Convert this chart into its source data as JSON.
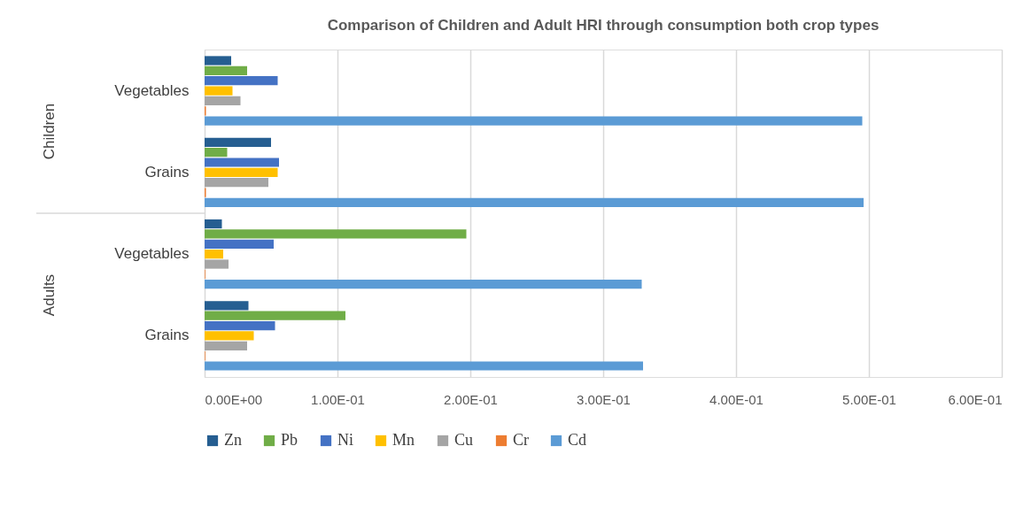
{
  "chart_data": {
    "type": "bar",
    "orientation": "horizontal",
    "title": "Comparison of Children and Adult HRI through consumption  both crop types",
    "categories": [
      "Vegetables",
      "Grains",
      "Vegetables",
      "Grains"
    ],
    "annotations": [
      "Children",
      "Adults"
    ],
    "series": [
      {
        "name": "Zn",
        "color": "#255e91",
        "values": [
          0.02,
          0.05,
          0.013,
          0.033
        ]
      },
      {
        "name": "Pb",
        "color": "#70ad47",
        "values": [
          0.032,
          0.017,
          0.197,
          0.106
        ]
      },
      {
        "name": "Ni",
        "color": "#4472c4",
        "values": [
          0.055,
          0.056,
          0.052,
          0.053
        ]
      },
      {
        "name": "Mn",
        "color": "#ffc000",
        "values": [
          0.021,
          0.055,
          0.014,
          0.037
        ]
      },
      {
        "name": "Cu",
        "color": "#a5a5a5",
        "values": [
          0.027,
          0.048,
          0.018,
          0.032
        ]
      },
      {
        "name": "Cr",
        "color": "#ed7d31",
        "values": [
          0.001,
          0.001,
          0.0005,
          0.0005
        ]
      },
      {
        "name": "Cd",
        "color": "#5b9bd5",
        "values": [
          0.495,
          0.496,
          0.329,
          0.33
        ]
      }
    ],
    "xlim": [
      0,
      0.6
    ],
    "xticks": [
      {
        "value": 0,
        "label": "0.00E+00"
      },
      {
        "value": 0.1,
        "label": "1.00E-01"
      },
      {
        "value": 0.2,
        "label": "2.00E-01"
      },
      {
        "value": 0.3,
        "label": "3.00E-01"
      },
      {
        "value": 0.4,
        "label": "4.00E-01"
      },
      {
        "value": 0.5,
        "label": "5.00E-01"
      },
      {
        "value": 0.6,
        "label": "6.00E-01"
      }
    ],
    "grid": "x",
    "legend": "bottom"
  }
}
